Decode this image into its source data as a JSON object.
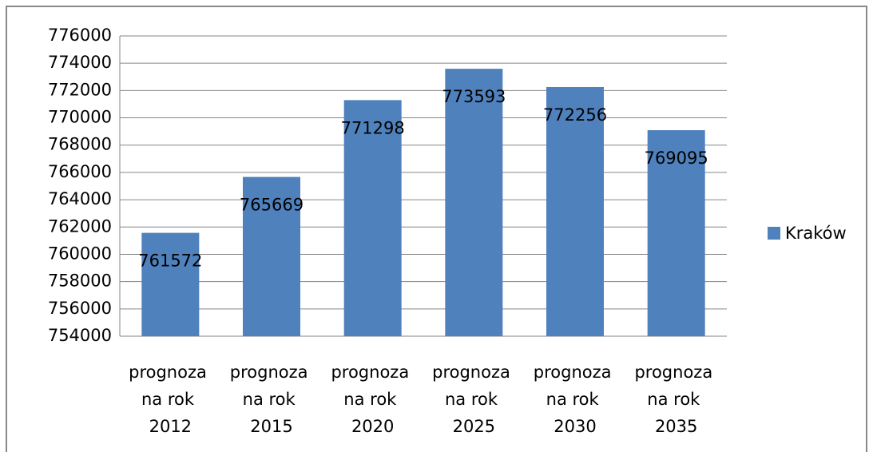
{
  "chart_data": {
    "type": "bar",
    "categories": [
      "prognoza na rok 2012",
      "prognoza na rok 2015",
      "prognoza na rok 2020",
      "prognoza na rok 2025",
      "prognoza na rok 2030",
      "prognoza na rok 2035"
    ],
    "series": [
      {
        "name": "Kraków",
        "color": "#4f81bd",
        "values": [
          761572,
          765669,
          771298,
          773593,
          772256,
          769095
        ]
      }
    ],
    "ylim": [
      754000,
      776000
    ],
    "yticks": [
      754000,
      756000,
      758000,
      760000,
      762000,
      764000,
      766000,
      768000,
      770000,
      772000,
      774000,
      776000
    ],
    "grid": true,
    "legend": "right"
  }
}
